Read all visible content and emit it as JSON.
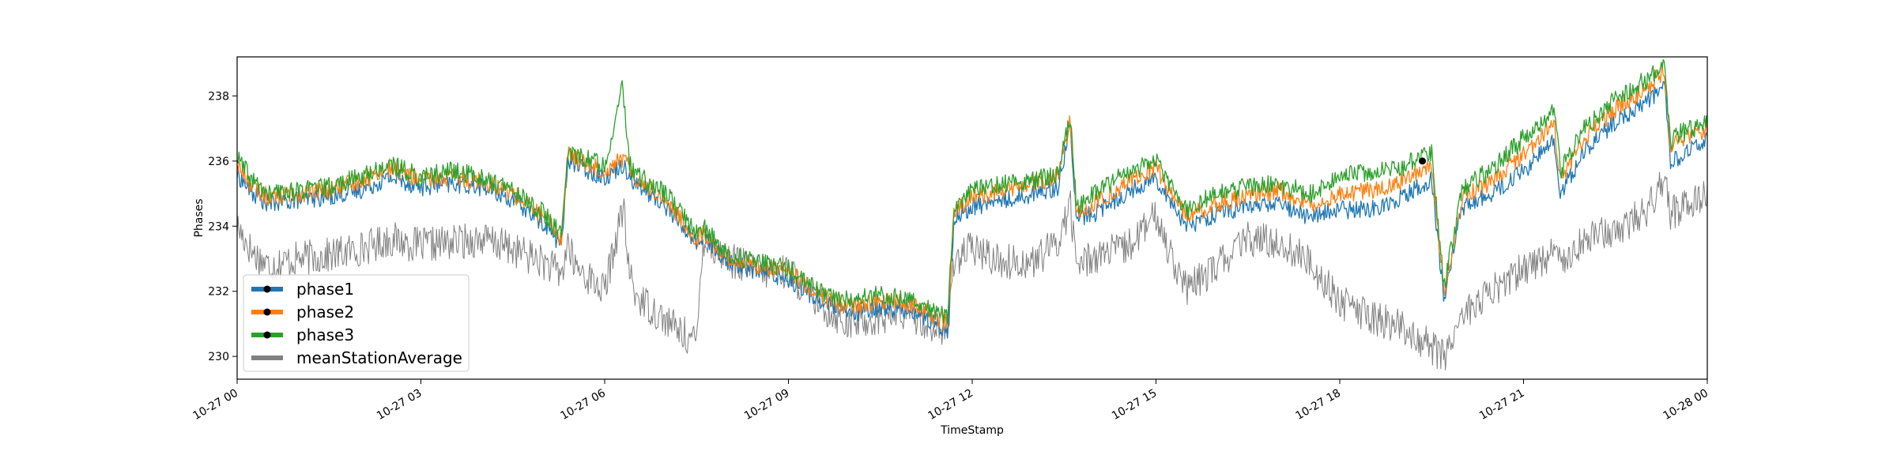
{
  "chart_data": {
    "type": "line",
    "title": "",
    "xlabel": "TimeStamp",
    "ylabel": "Phases",
    "xlim": [
      "10-27 00:00",
      "10-28 00:00"
    ],
    "ylim": [
      229.3,
      239.2
    ],
    "x_ticks": [
      "10-27 00",
      "10-27 03",
      "10-27 06",
      "10-27 09",
      "10-27 12",
      "10-27 15",
      "10-27 18",
      "10-27 21",
      "10-28 00"
    ],
    "y_ticks": [
      230,
      232,
      234,
      236,
      238
    ],
    "grid": false,
    "legend": "lower-left",
    "x_hours": [
      0,
      0.25,
      0.5,
      1,
      1.5,
      2,
      2.5,
      3,
      3.5,
      4,
      4.5,
      5,
      5.3,
      5.4,
      5.5,
      6,
      6.3,
      6.4,
      6.5,
      7,
      7.5,
      7.6,
      8,
      8.5,
      9,
      9.5,
      10,
      10.5,
      11,
      11.6,
      11.7,
      12,
      12.5,
      13,
      13.4,
      13.6,
      13.7,
      14,
      14.5,
      15,
      15.5,
      16,
      16.5,
      17,
      17.5,
      18,
      18.5,
      19,
      19.5,
      19.7,
      20,
      20.5,
      21,
      21.5,
      21.6,
      22,
      22.5,
      23,
      23.3,
      23.4,
      23.5,
      24
    ],
    "series": [
      {
        "name": "phase1",
        "color": "#1f77b4",
        "marker": "black-dot",
        "values": [
          235.6,
          235.0,
          234.7,
          234.8,
          234.9,
          235.1,
          235.5,
          235.2,
          235.3,
          235.2,
          234.8,
          234.1,
          233.4,
          236.1,
          235.9,
          235.5,
          235.9,
          235.6,
          235.3,
          234.6,
          233.5,
          233.7,
          232.9,
          232.6,
          232.4,
          231.7,
          231.3,
          231.5,
          231.4,
          230.8,
          234.2,
          234.6,
          234.8,
          235.0,
          235.2,
          237.1,
          234.2,
          234.4,
          235.0,
          235.5,
          234.0,
          234.4,
          234.6,
          234.7,
          234.3,
          234.5,
          234.5,
          234.9,
          235.4,
          231.8,
          234.6,
          235.0,
          235.7,
          236.6,
          235.0,
          236.3,
          237.2,
          237.8,
          238.3,
          235.9,
          236.1,
          236.6
        ]
      },
      {
        "name": "phase2",
        "color": "#ff7f0e",
        "marker": "black-dot",
        "values": [
          235.9,
          235.2,
          234.9,
          235.0,
          235.1,
          235.4,
          235.8,
          235.4,
          235.5,
          235.4,
          235.0,
          234.3,
          233.6,
          236.3,
          236.1,
          235.7,
          236.1,
          235.8,
          235.5,
          234.8,
          233.6,
          233.8,
          233.0,
          232.8,
          232.6,
          231.9,
          231.5,
          231.7,
          231.6,
          231.0,
          234.4,
          234.9,
          235.1,
          235.3,
          235.5,
          237.2,
          234.4,
          234.7,
          235.3,
          235.8,
          234.3,
          234.7,
          234.9,
          235.1,
          234.7,
          235.0,
          235.1,
          235.4,
          235.9,
          232.0,
          234.9,
          235.4,
          236.2,
          237.2,
          235.4,
          236.7,
          237.6,
          238.2,
          238.8,
          236.4,
          236.6,
          237.0
        ]
      },
      {
        "name": "phase3",
        "color": "#2ca02c",
        "marker": "black-dot",
        "values": [
          236.1,
          235.4,
          235.0,
          235.1,
          235.2,
          235.5,
          235.9,
          235.5,
          235.7,
          235.5,
          235.1,
          234.4,
          233.7,
          236.4,
          236.2,
          235.9,
          238.3,
          235.9,
          235.6,
          235.0,
          233.8,
          234.0,
          233.1,
          232.9,
          232.7,
          232.0,
          231.7,
          231.9,
          231.8,
          231.2,
          234.6,
          235.1,
          235.3,
          235.4,
          235.6,
          237.4,
          234.6,
          235.0,
          235.6,
          236.0,
          234.5,
          235.0,
          235.2,
          235.3,
          235.0,
          235.5,
          235.7,
          235.8,
          236.3,
          232.1,
          235.1,
          235.8,
          236.7,
          237.6,
          235.7,
          237.0,
          237.9,
          238.5,
          239.0,
          236.6,
          236.8,
          237.2
        ]
      },
      {
        "name": "meanStationAverage",
        "color": "#808080",
        "marker": "none",
        "values": [
          234.0,
          233.2,
          232.8,
          233.0,
          233.1,
          233.3,
          233.6,
          233.4,
          233.5,
          233.6,
          233.3,
          232.9,
          232.5,
          233.5,
          232.8,
          232.0,
          234.6,
          232.6,
          231.9,
          231.1,
          230.4,
          233.6,
          233.0,
          232.6,
          232.6,
          231.6,
          231.0,
          231.2,
          231.3,
          230.7,
          233.0,
          233.3,
          232.9,
          232.9,
          233.5,
          234.7,
          232.8,
          233.1,
          233.3,
          234.3,
          232.0,
          232.8,
          233.6,
          233.5,
          232.9,
          231.7,
          231.2,
          230.9,
          230.3,
          230.0,
          231.3,
          232.0,
          232.7,
          233.2,
          233.0,
          233.6,
          233.9,
          234.4,
          235.6,
          234.3,
          234.5,
          235.1
        ]
      }
    ],
    "highlight_point": {
      "x_hour": 19.35,
      "y": 236.0,
      "color": "#000000"
    }
  }
}
